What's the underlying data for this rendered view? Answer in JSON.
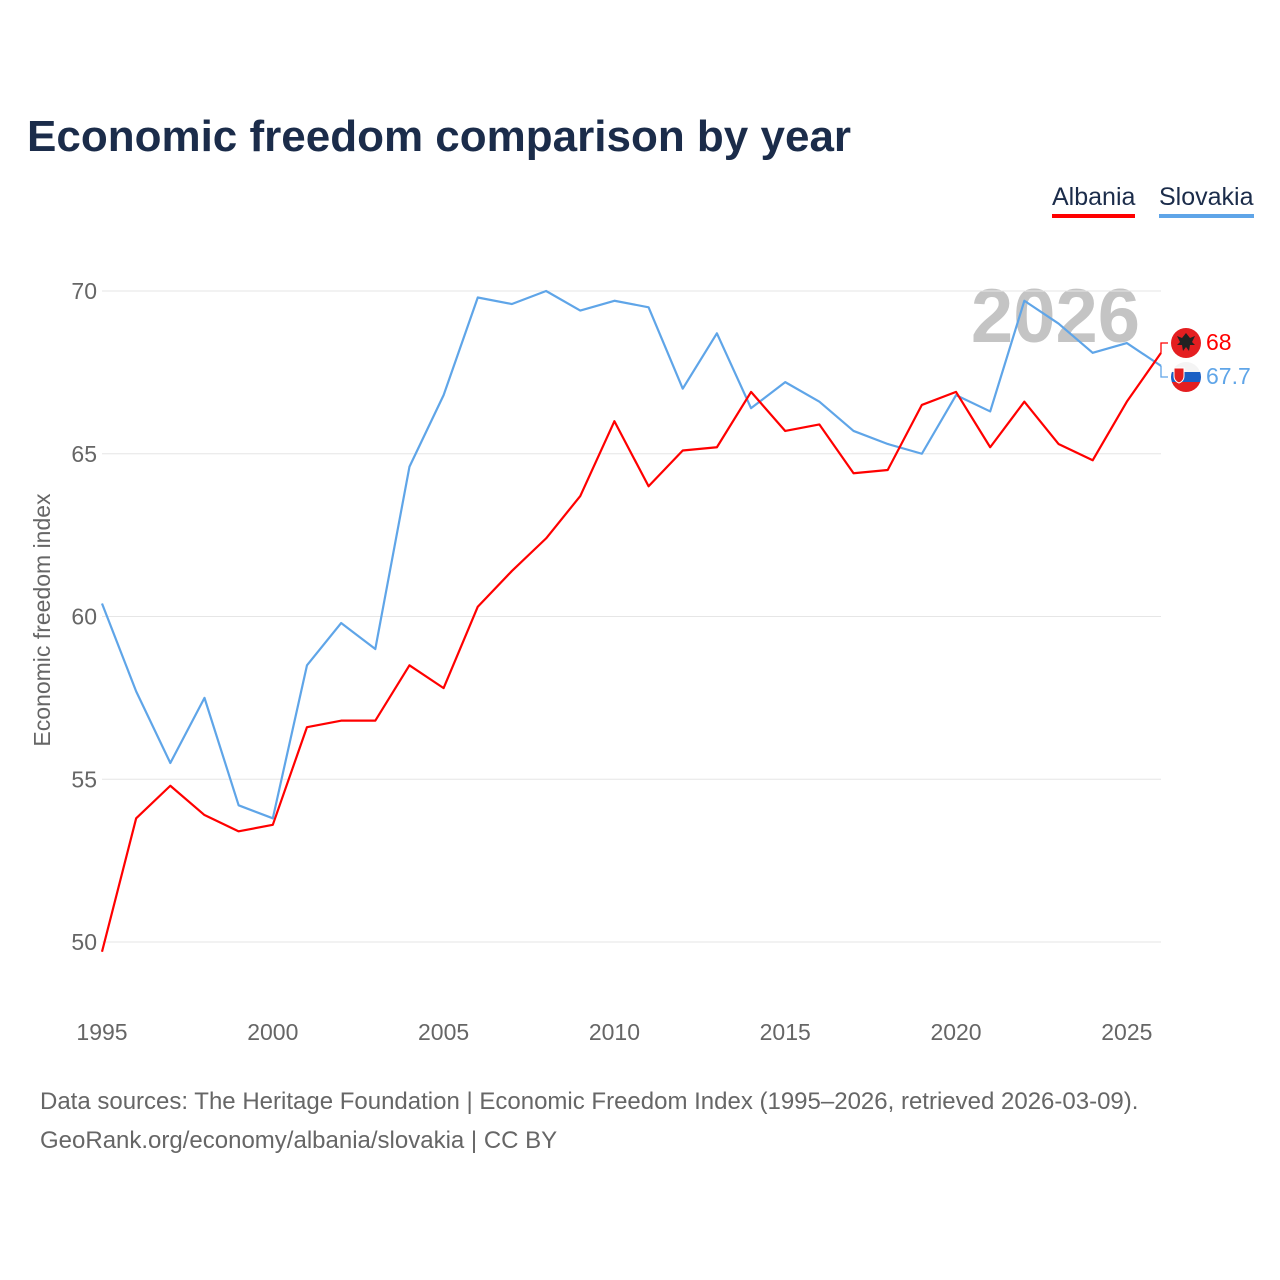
{
  "title": "Economic freedom comparison by year",
  "legend": [
    {
      "label": "Albania",
      "color": "#ff0000"
    },
    {
      "label": "Slovakia",
      "color": "#5fa5e8"
    }
  ],
  "watermark_year": "2026",
  "end_labels": {
    "albania": "68",
    "slovakia": "67.7"
  },
  "flags": {
    "albania": "albania-flag-icon",
    "slovakia": "slovakia-flag-icon"
  },
  "sources": [
    "Data sources: The Heritage Foundation | Economic Freedom Index (1995–2026, retrieved 2026-03-09).",
    "GeoRank.org/economy/albania/slovakia | CC BY"
  ],
  "chart_data": {
    "type": "line",
    "title": "Economic freedom comparison by year",
    "xlabel": "",
    "ylabel": "Economic freedom index",
    "xlim": [
      1995,
      2026
    ],
    "ylim": [
      50,
      70
    ],
    "xticks": [
      1995,
      2000,
      2005,
      2010,
      2015,
      2020,
      2025
    ],
    "yticks": [
      50,
      55,
      60,
      65,
      70
    ],
    "grid": true,
    "legend_position": "top-right",
    "x": [
      1995,
      1996,
      1997,
      1998,
      1999,
      2000,
      2001,
      2002,
      2003,
      2004,
      2005,
      2006,
      2007,
      2008,
      2009,
      2010,
      2011,
      2012,
      2013,
      2014,
      2015,
      2016,
      2017,
      2018,
      2019,
      2020,
      2021,
      2022,
      2023,
      2024,
      2025,
      2026
    ],
    "series": [
      {
        "name": "Albania",
        "color": "#ff0000",
        "values": [
          49.7,
          53.8,
          54.8,
          53.9,
          53.4,
          53.6,
          56.6,
          56.8,
          56.8,
          58.5,
          57.8,
          60.3,
          61.4,
          62.4,
          63.7,
          66.0,
          64.0,
          65.1,
          65.2,
          66.9,
          65.7,
          65.9,
          64.4,
          64.5,
          66.5,
          66.9,
          65.2,
          66.6,
          65.3,
          64.8,
          66.6,
          68.1
        ]
      },
      {
        "name": "Slovakia",
        "color": "#5fa5e8",
        "values": [
          60.4,
          57.7,
          55.5,
          57.5,
          54.2,
          53.8,
          58.5,
          59.8,
          59.0,
          64.6,
          66.8,
          69.8,
          69.6,
          70.0,
          69.4,
          69.7,
          69.5,
          67.0,
          68.7,
          66.4,
          67.2,
          66.6,
          65.7,
          65.3,
          65.0,
          66.8,
          66.3,
          69.7,
          69.0,
          68.1,
          68.4,
          67.7
        ]
      }
    ]
  }
}
